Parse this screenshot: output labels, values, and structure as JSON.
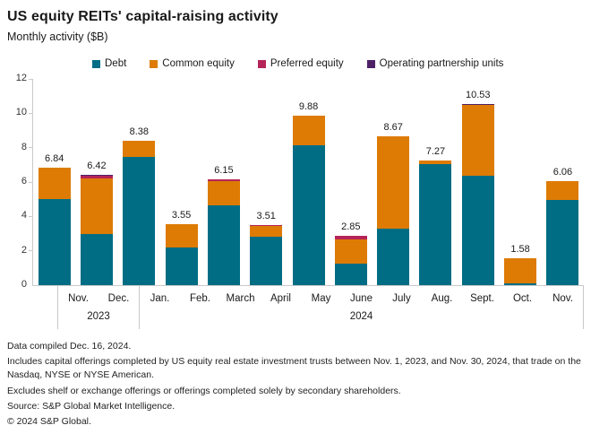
{
  "header": {
    "title": "US equity REITs' capital-raising activity",
    "subtitle": "Monthly activity ($B)"
  },
  "footer": {
    "lines": [
      "Data compiled Dec. 16, 2024.",
      "Includes capital offerings completed by US equity real estate investment trusts between Nov. 1, 2023, and Nov. 30, 2024, that trade on the Nasdaq, NYSE or NYSE American.",
      "Excludes shelf or exchange offerings or offerings completed solely by secondary shareholders.",
      "Source: S&P Global Market Intelligence.",
      "© 2024 S&P Global."
    ]
  },
  "colors": {
    "debt": "#006d84",
    "common_equity": "#dd7b05",
    "preferred_equity": "#b52458",
    "op_units": "#4e2166",
    "axis_gray": "#c9c9c9"
  },
  "chart_data": {
    "type": "bar",
    "stacked": true,
    "title": "US equity REITs' capital-raising activity",
    "subtitle": "Monthly activity ($B)",
    "ylim": [
      0,
      12
    ],
    "yticks": [
      0,
      2,
      4,
      6,
      8,
      10,
      12
    ],
    "grid": false,
    "legend_position": "top",
    "categories": [
      "Nov.",
      "Dec.",
      "Jan.",
      "Feb.",
      "March",
      "April",
      "May",
      "June",
      "July",
      "Aug.",
      "Sept.",
      "Oct.",
      "Nov."
    ],
    "year_groups": [
      {
        "label": "2023",
        "span": 2
      },
      {
        "label": "2024",
        "span": 11
      }
    ],
    "totals": [
      6.84,
      6.42,
      8.38,
      3.55,
      6.15,
      3.51,
      9.88,
      2.85,
      8.67,
      7.27,
      10.53,
      1.58,
      6.06
    ],
    "total_labels": [
      "6.84",
      "6.42",
      "8.38",
      "3.55",
      "6.15",
      "3.51",
      "9.88",
      "2.85",
      "8.67",
      "7.27",
      "10.53",
      "1.58",
      "6.06"
    ],
    "series": [
      {
        "name": "Debt",
        "color": "#006d84",
        "values": [
          5.0,
          2.97,
          7.48,
          2.18,
          4.66,
          2.84,
          8.15,
          1.25,
          3.29,
          7.05,
          6.39,
          0.1,
          4.95
        ]
      },
      {
        "name": "Common equity",
        "color": "#dd7b05",
        "values": [
          1.84,
          3.22,
          0.9,
          1.37,
          1.41,
          0.63,
          1.73,
          1.43,
          5.38,
          0.22,
          4.11,
          1.48,
          1.11
        ]
      },
      {
        "name": "Preferred equity",
        "color": "#b52458",
        "values": [
          0,
          0.2,
          0,
          0,
          0.08,
          0.04,
          0,
          0.17,
          0,
          0,
          0,
          0,
          0
        ]
      },
      {
        "name": "Operating partnership units",
        "color": "#4e2166",
        "values": [
          0,
          0.03,
          0,
          0,
          0,
          0,
          0,
          0,
          0,
          0,
          0.03,
          0,
          0
        ]
      }
    ]
  }
}
